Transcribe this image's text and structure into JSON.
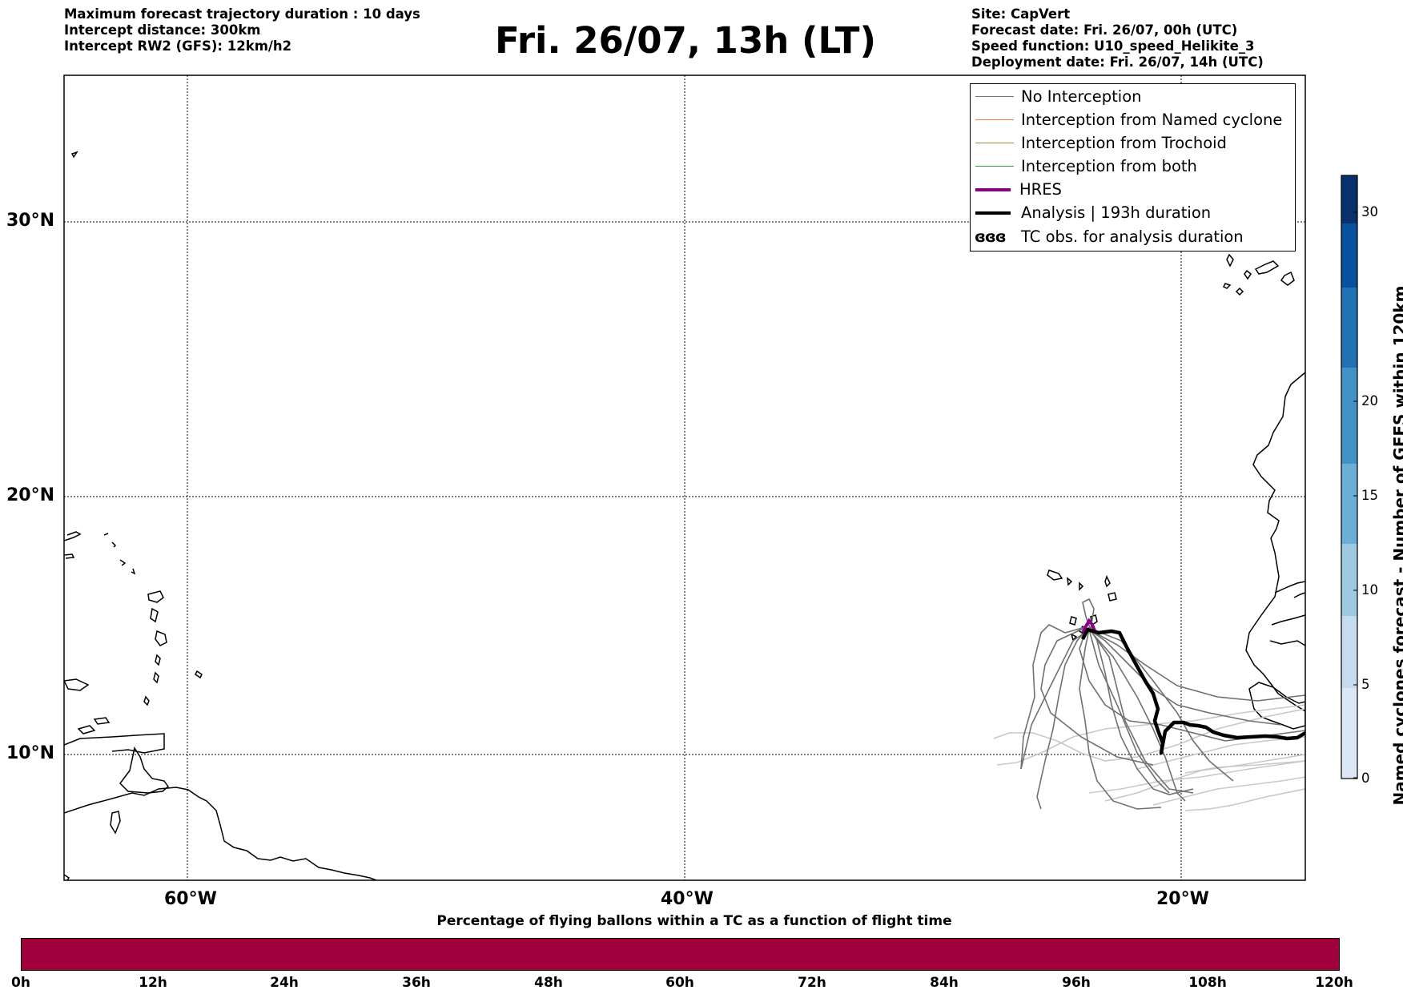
{
  "header": {
    "left_lines": [
      "Maximum forecast trajectory duration : 10 days",
      "Intercept distance: 300km",
      "Intercept RW2 (GFS):  12km/h2"
    ],
    "title": "Fri. 26/07, 13h (LT)",
    "right_lines": [
      "Site: CapVert",
      "Forecast date: Fri. 26/07, 00h (UTC)",
      "Speed function: U10_speed_Helikite_3",
      "Deployment date: Fri. 26/07, 14h (UTC)"
    ]
  },
  "map": {
    "lat_labels": [
      "30°N",
      "20°N",
      "10°N"
    ],
    "lon_labels": [
      "60°W",
      "40°W",
      "20°W"
    ],
    "gridlines": "dotted"
  },
  "legend": {
    "items": [
      {
        "label": "No Interception",
        "color": "#777777",
        "style": "thin"
      },
      {
        "label": "Interception from Named cyclone",
        "color": "#f4794b",
        "style": "thin"
      },
      {
        "label": "Interception from Trochoid",
        "color": "#9a8b3a",
        "style": "thin"
      },
      {
        "label": "Interception from both",
        "color": "#3a9a3a",
        "style": "thin"
      },
      {
        "label": "HRES",
        "color": "#8b008b",
        "style": "thick"
      },
      {
        "label": "Analysis | 193h duration",
        "color": "#000000",
        "style": "thick"
      },
      {
        "label": "TC obs. for analysis duration",
        "symbol": "ɞɞɞ",
        "style": "symbol"
      }
    ]
  },
  "colorbar": {
    "title": "Named cyclones forecast - Number of GEFS within 120km",
    "ticks": [
      "0",
      "5",
      "10",
      "15",
      "20",
      "30"
    ],
    "colors": [
      "#dbe7f4",
      "#c6dbef",
      "#9ecae1",
      "#6baed6",
      "#4292c6",
      "#2171b5",
      "#08519c",
      "#08306b"
    ]
  },
  "time_bar": {
    "title": "Percentage of flying ballons within a TC as a function of flight time",
    "fill_color": "#a0003c",
    "ticks": [
      "0h",
      "12h",
      "24h",
      "36h",
      "48h",
      "60h",
      "72h",
      "84h",
      "96h",
      "108h",
      "120h"
    ]
  }
}
